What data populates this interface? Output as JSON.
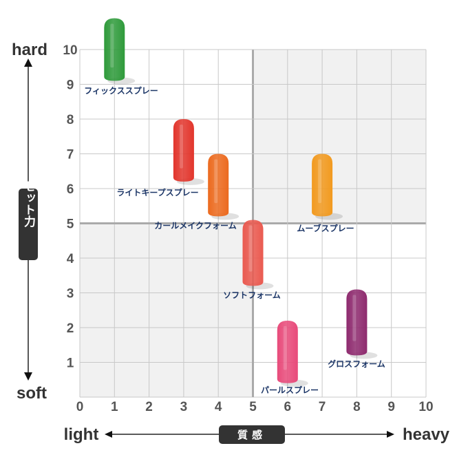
{
  "chart_data": {
    "type": "scatter",
    "title": "",
    "xlabel": "質感",
    "ylabel": "セット力",
    "x_low_label": "light",
    "x_high_label": "heavy",
    "y_high_label": "hard",
    "y_low_label": "soft",
    "xlim": [
      0,
      10
    ],
    "ylim": [
      0,
      10
    ],
    "xticks": [
      "0",
      "1",
      "2",
      "3",
      "4",
      "5",
      "6",
      "7",
      "8",
      "9",
      "10"
    ],
    "yticks": [
      "1",
      "2",
      "3",
      "4",
      "5",
      "6",
      "7",
      "8",
      "9",
      "10"
    ],
    "grid": true,
    "shaded_quadrants": [
      "bottom-left",
      "top-right"
    ],
    "points": [
      {
        "name": "フィックススプレー",
        "x": 1,
        "y_top": 10.9,
        "y_bottom": 9.1,
        "color": "#2e9a3a"
      },
      {
        "name": "ライトキープスプレー",
        "x": 3,
        "y_top": 8.0,
        "y_bottom": 6.2,
        "color": "#e2352c"
      },
      {
        "name": "カールメイクフォーム",
        "x": 4,
        "y_top": 7.0,
        "y_bottom": 5.2,
        "color": "#ec6a1e"
      },
      {
        "name": "ムーブスプレー",
        "x": 7,
        "y_top": 7.0,
        "y_bottom": 5.2,
        "color": "#f29a1f"
      },
      {
        "name": "ソフトフォーム",
        "x": 5,
        "y_top": 5.1,
        "y_bottom": 3.2,
        "color": "#ea5a50"
      },
      {
        "name": "パールスプレー",
        "x": 6,
        "y_top": 2.2,
        "y_bottom": 0.4,
        "color": "#e84a7a"
      },
      {
        "name": "グロスフォーム",
        "x": 8,
        "y_top": 3.1,
        "y_bottom": 1.2,
        "color": "#8e2a6e"
      }
    ]
  }
}
